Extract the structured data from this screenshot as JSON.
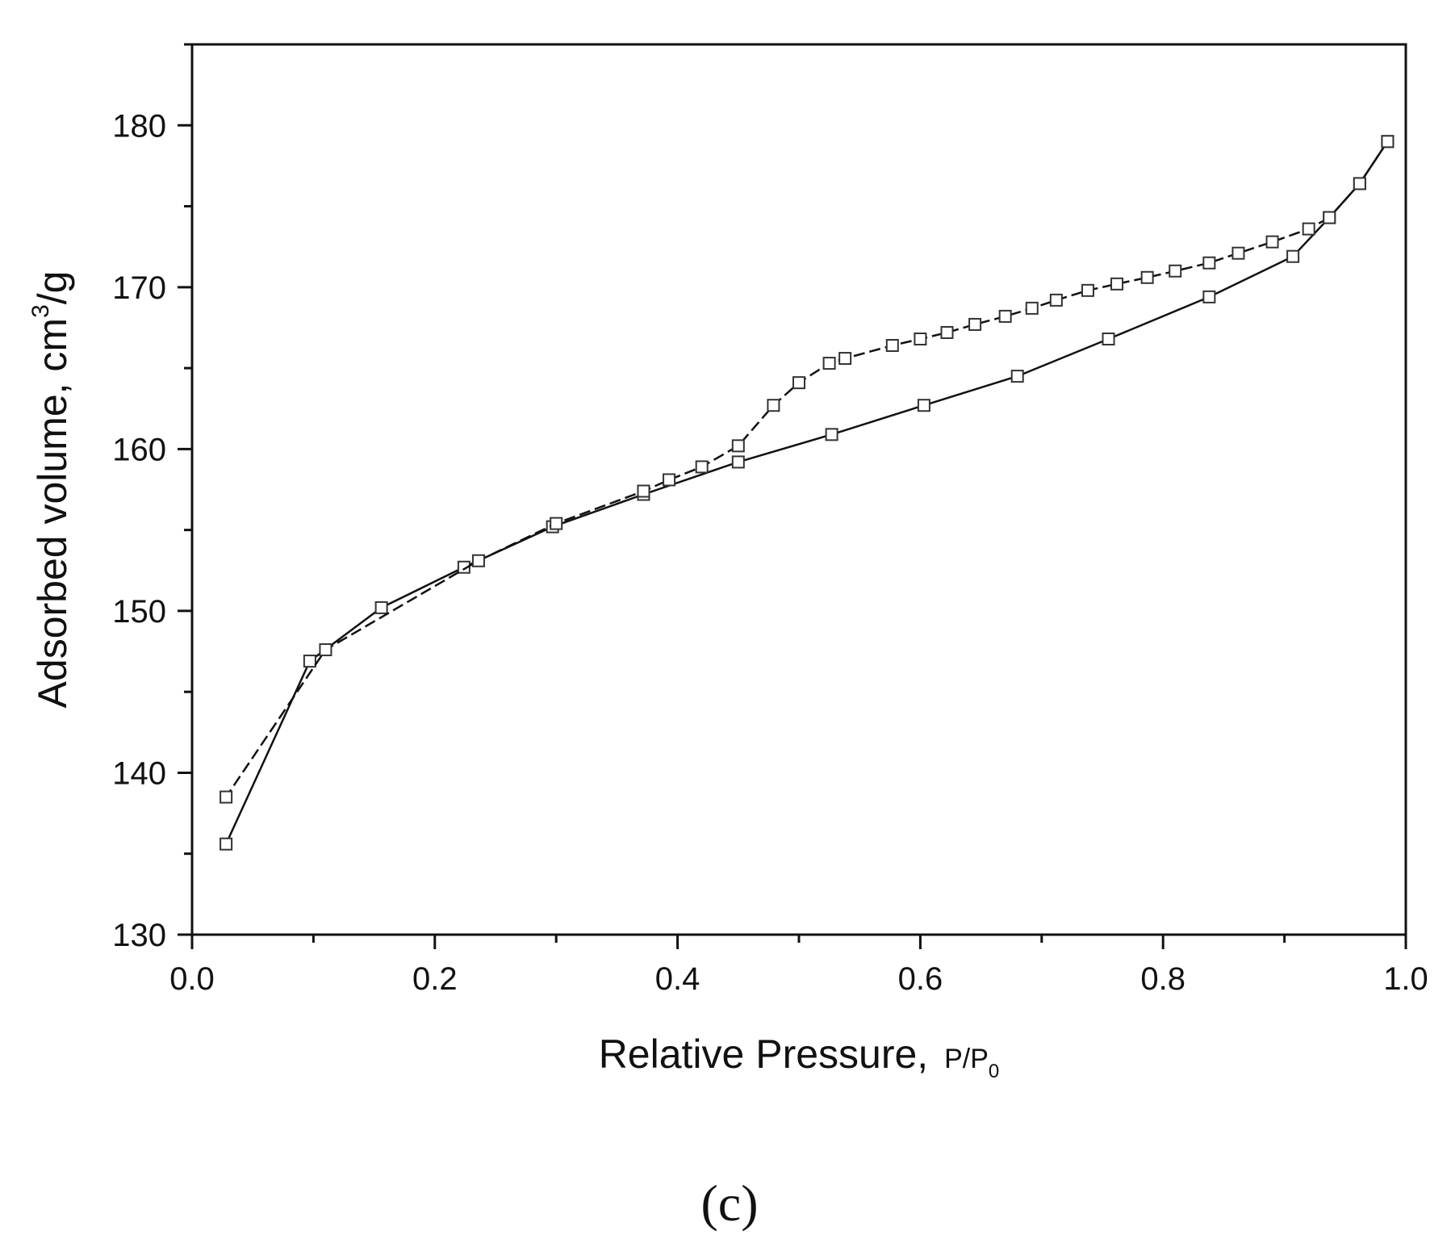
{
  "chart_data": {
    "type": "line",
    "xlabel_main": "Relative Pressure,",
    "xlabel_unit": "P/P",
    "xlabel_unit_sub": "0",
    "ylabel_main": "Adsorbed volume, cm",
    "ylabel_sup": "3",
    "ylabel_tail": "/g",
    "xlim": [
      0.0,
      1.0
    ],
    "ylim": [
      130,
      185
    ],
    "x_ticks": [
      "0.0",
      "0.2",
      "0.4",
      "0.6",
      "0.8",
      "1.0"
    ],
    "x_tick_values": [
      0.0,
      0.2,
      0.4,
      0.6,
      0.8,
      1.0
    ],
    "y_ticks": [
      "130",
      "140",
      "150",
      "160",
      "170",
      "180"
    ],
    "y_tick_values": [
      130,
      140,
      150,
      160,
      170,
      180
    ],
    "grid": false,
    "legend": "none",
    "series": [
      {
        "marker": "square-open",
        "line_style": "solid",
        "x": [
          0.028,
          0.097,
          0.156,
          0.224,
          0.297,
          0.372,
          0.45,
          0.527,
          0.603,
          0.68,
          0.755,
          0.838,
          0.907,
          0.937,
          0.962,
          0.985
        ],
        "y": [
          135.6,
          146.9,
          150.2,
          152.7,
          155.2,
          157.2,
          159.2,
          160.9,
          162.7,
          164.5,
          166.8,
          169.4,
          171.9,
          174.3,
          176.4,
          179.0
        ]
      },
      {
        "marker": "square-open",
        "line_style": "dashed",
        "x": [
          0.985,
          0.962,
          0.937,
          0.92,
          0.89,
          0.862,
          0.838,
          0.81,
          0.787,
          0.762,
          0.738,
          0.712,
          0.692,
          0.67,
          0.645,
          0.622,
          0.6,
          0.577,
          0.538,
          0.525,
          0.5,
          0.479,
          0.45,
          0.42,
          0.393,
          0.372,
          0.3,
          0.236,
          0.11,
          0.028
        ],
        "y": [
          179.0,
          176.4,
          174.3,
          173.6,
          172.8,
          172.1,
          171.5,
          171.0,
          170.6,
          170.2,
          169.8,
          169.2,
          168.7,
          168.2,
          167.7,
          167.2,
          166.8,
          166.4,
          165.6,
          165.3,
          164.1,
          162.7,
          160.2,
          158.9,
          158.1,
          157.4,
          155.4,
          153.1,
          147.6,
          138.5
        ]
      }
    ]
  },
  "panel_label": "(c)"
}
